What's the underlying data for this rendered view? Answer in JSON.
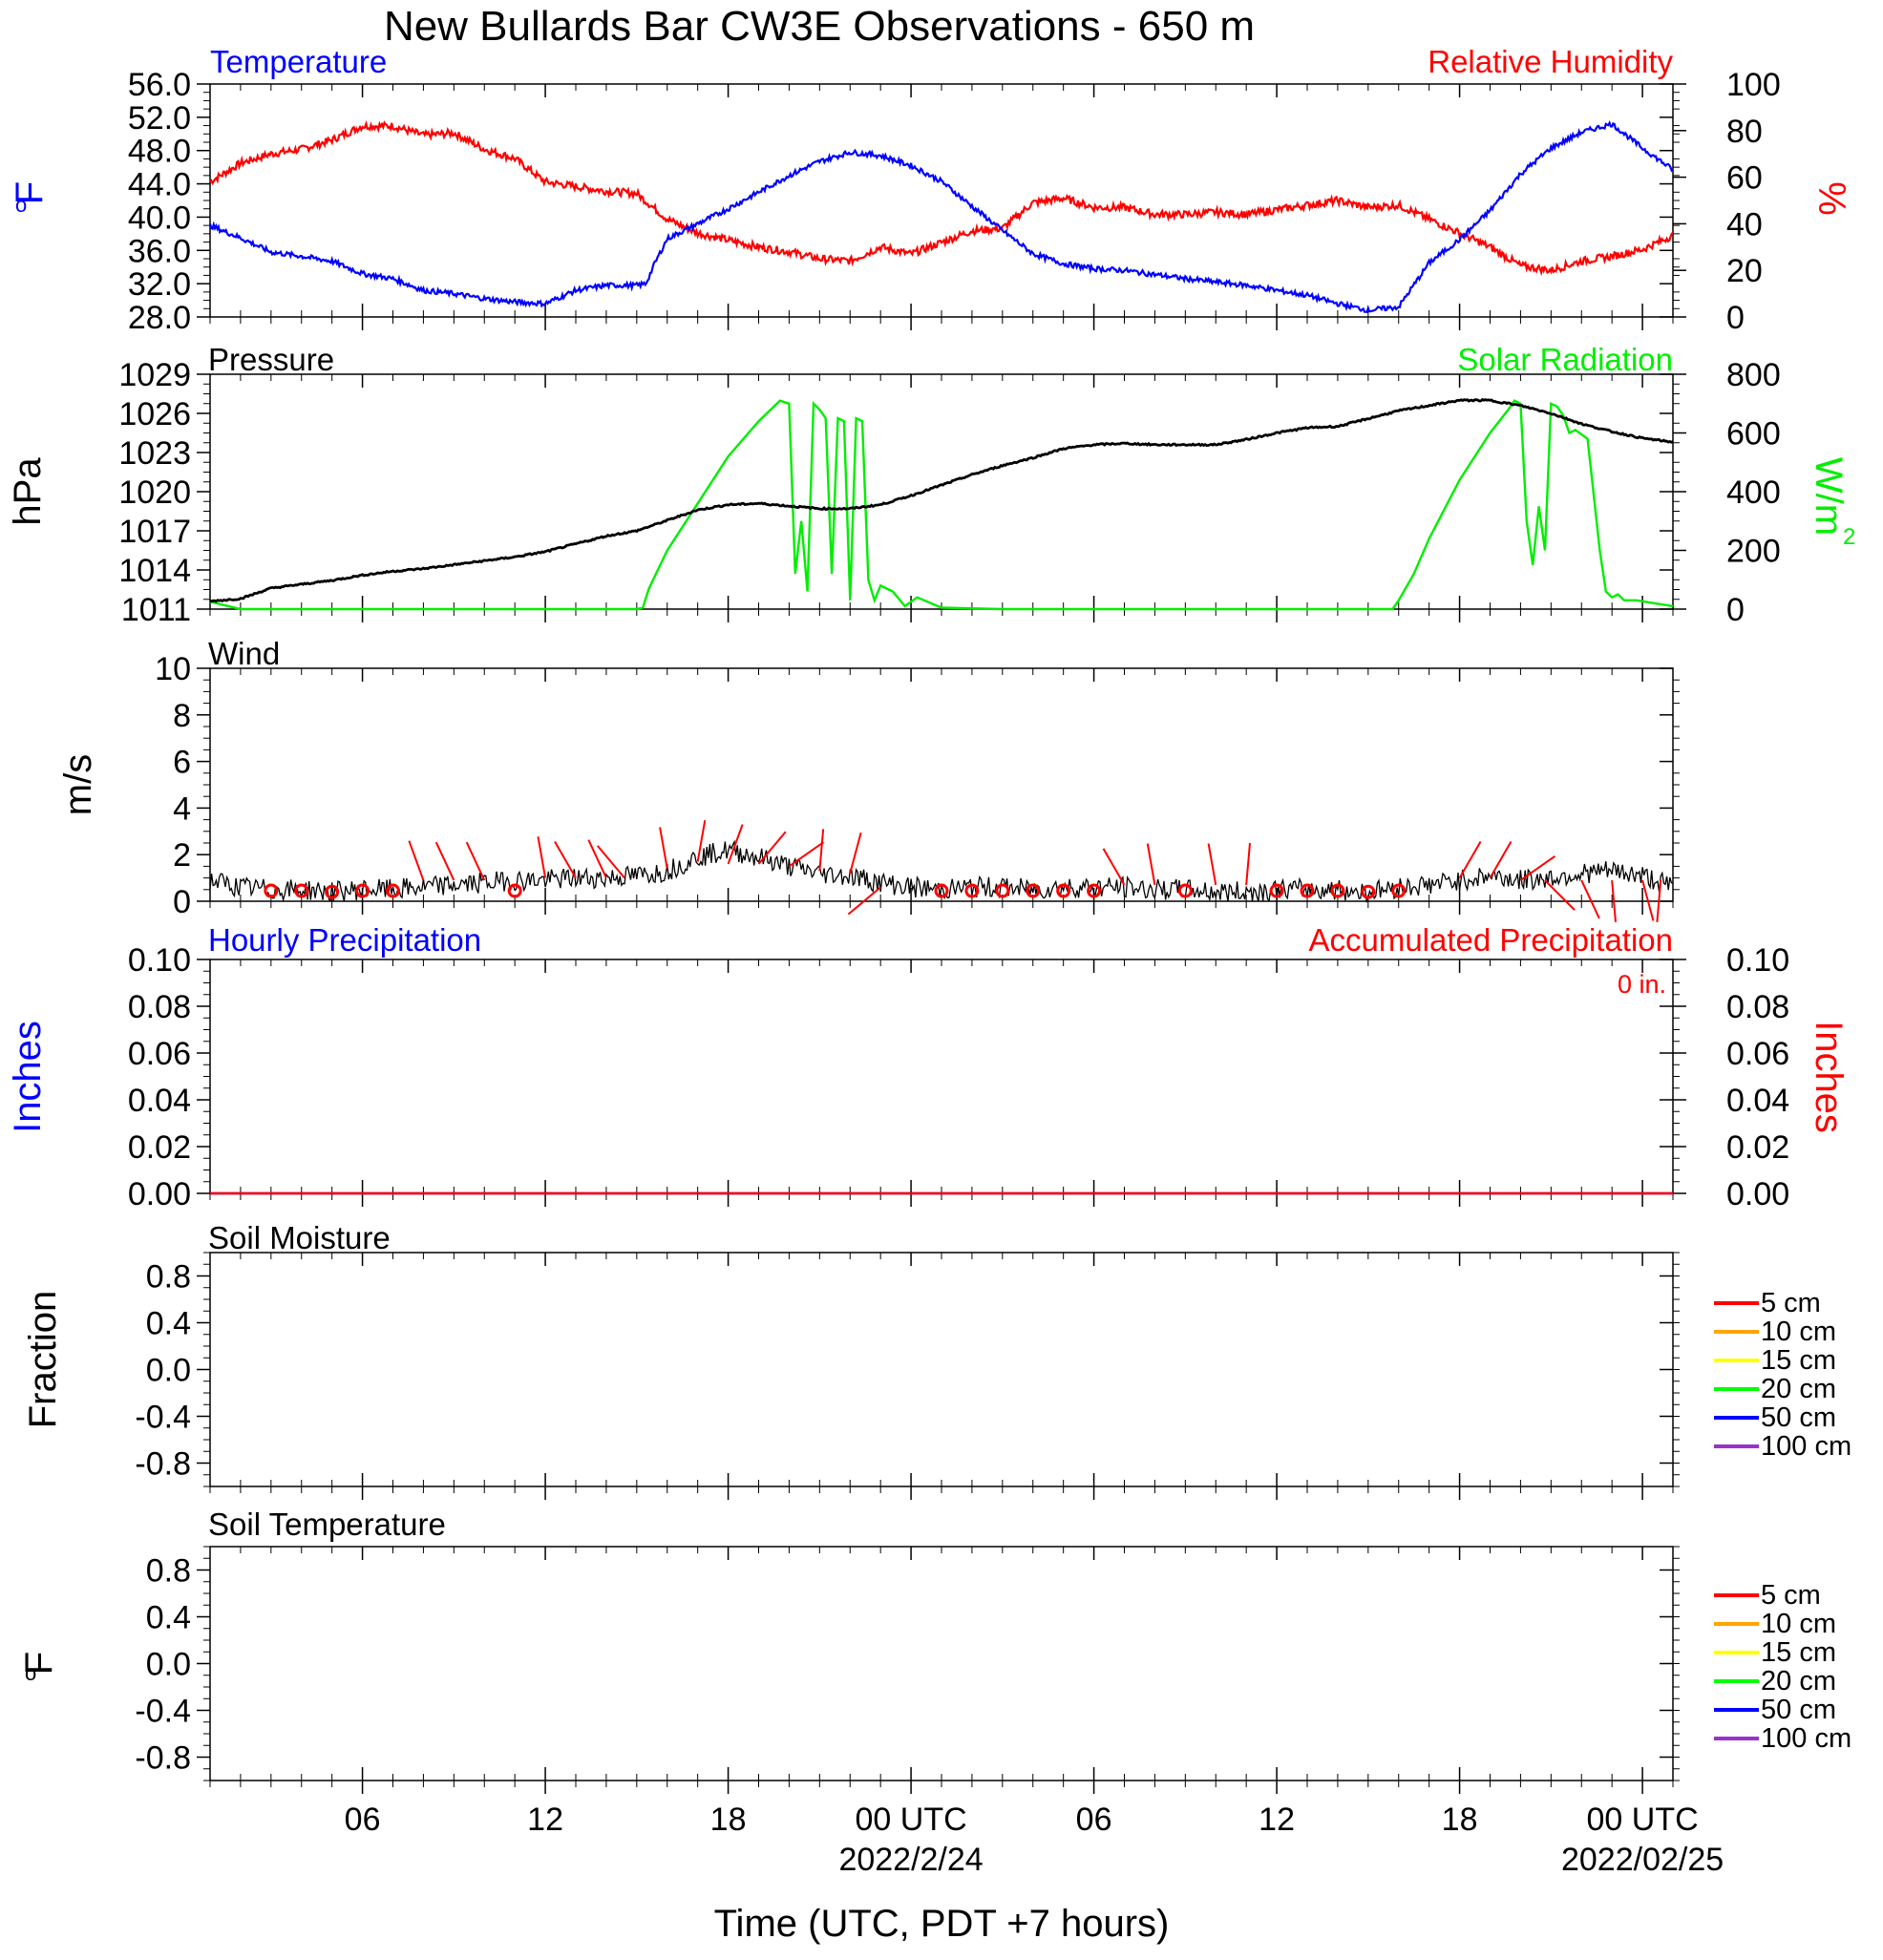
{
  "title": "New Bullards Bar CW3E Observations - 650 m",
  "x_axis": {
    "label": "Time (UTC, PDT +7 hours)",
    "tick_labels": [
      "06",
      "12",
      "18",
      "00 UTC",
      "06",
      "12",
      "18",
      "00 UTC"
    ],
    "date_labels": [
      "2022/2/24",
      "2022/02/25"
    ]
  },
  "colors": {
    "temperature": "#0000ff",
    "humidity": "#ff0000",
    "pressure": "#000000",
    "solar": "#00ee00",
    "wind": "#000000",
    "barbs": "#ff0000",
    "hourly_precip": "#0000ff",
    "accum_precip": "#ff0000"
  },
  "panels": {
    "temp_rh": {
      "left_title": "Temperature",
      "right_title": "Relative Humidity",
      "left_unit_base": "o",
      "left_unit": "F",
      "right_unit": "%",
      "left_ticks": [
        "56.0",
        "52.0",
        "48.0",
        "44.0",
        "40.0",
        "36.0",
        "32.0",
        "28.0"
      ],
      "right_ticks": [
        "100",
        "80",
        "60",
        "40",
        "20",
        "0"
      ]
    },
    "pressure_solar": {
      "left_title": "Pressure",
      "right_title": "Solar Radiation",
      "left_unit": "hPa",
      "right_unit": "W/m",
      "right_unit_sup": "2",
      "left_ticks": [
        "1029",
        "1026",
        "1023",
        "1020",
        "1017",
        "1014",
        "1011"
      ],
      "right_ticks": [
        "800",
        "600",
        "400",
        "200",
        "0"
      ]
    },
    "wind": {
      "left_title": "Wind",
      "left_unit": "m/s",
      "left_ticks": [
        "10",
        "8",
        "6",
        "4",
        "2",
        "0"
      ]
    },
    "precip": {
      "left_title": "Hourly Precipitation",
      "right_title": "Accumulated Precipitation",
      "accum_label": "0 in.",
      "left_unit": "Inches",
      "right_unit": "Inches",
      "left_ticks": [
        "0.10",
        "0.08",
        "0.06",
        "0.04",
        "0.02",
        "0.00"
      ],
      "right_ticks": [
        "0.10",
        "0.08",
        "0.06",
        "0.04",
        "0.02",
        "0.00"
      ]
    },
    "soil_moisture": {
      "left_title": "Soil Moisture",
      "left_unit": "Fraction",
      "left_ticks": [
        "0.8",
        "0.4",
        "0.0",
        "-0.4",
        "-0.8"
      ],
      "legend": [
        {
          "label": "5 cm",
          "color": "#ff0000"
        },
        {
          "label": "10 cm",
          "color": "#ffa500"
        },
        {
          "label": "15 cm",
          "color": "#ffff00"
        },
        {
          "label": "20 cm",
          "color": "#00ff00"
        },
        {
          "label": "50 cm",
          "color": "#0000ff"
        },
        {
          "label": "100 cm",
          "color": "#9932cc"
        }
      ]
    },
    "soil_temp": {
      "left_title": "Soil Temperature",
      "left_unit_base": "o",
      "left_unit": "F",
      "left_ticks": [
        "0.8",
        "0.4",
        "0.0",
        "-0.4",
        "-0.8"
      ],
      "legend": [
        {
          "label": "5 cm",
          "color": "#ff0000"
        },
        {
          "label": "10 cm",
          "color": "#ffa500"
        },
        {
          "label": "15 cm",
          "color": "#ffff00"
        },
        {
          "label": "20 cm",
          "color": "#00ff00"
        },
        {
          "label": "50 cm",
          "color": "#0000ff"
        },
        {
          "label": "100 cm",
          "color": "#9932cc"
        }
      ]
    }
  },
  "chart_data": [
    {
      "type": "line",
      "panel": "temp_rh",
      "x_unit": "hours since 2022-02-23 00 UTC",
      "xlim": [
        1,
        49
      ],
      "ylim": [
        28,
        56
      ],
      "y2lim": [
        0,
        100
      ],
      "series": [
        {
          "name": "Temperature",
          "axis": "left",
          "x": [
            1,
            2,
            3,
            4,
            5,
            6,
            7,
            8,
            9,
            10,
            11,
            12,
            13,
            14,
            15,
            15.3,
            15.6,
            16,
            17,
            18,
            19,
            20,
            21,
            22,
            23,
            24,
            25,
            26,
            27,
            28,
            29,
            30,
            31,
            32,
            33,
            34,
            35,
            36,
            37,
            38,
            39,
            40,
            41,
            42,
            43,
            44,
            45,
            46,
            47,
            48,
            49
          ],
          "y": [
            39.0,
            37.5,
            35.8,
            35.3,
            34.7,
            33.2,
            32.6,
            31.2,
            30.8,
            30.2,
            29.8,
            29.6,
            31.2,
            31.8,
            31.8,
            32.0,
            34.5,
            37.4,
            39.2,
            41.0,
            43.0,
            45.0,
            46.7,
            47.8,
            47.4,
            46.2,
            44.3,
            41.3,
            38.4,
            35.6,
            34.4,
            33.8,
            33.6,
            33.1,
            32.6,
            32.2,
            31.8,
            31.2,
            30.6,
            29.6,
            28.8,
            29.2,
            34.5,
            37.3,
            40.8,
            45.2,
            48.3,
            50.2,
            51.2,
            48.3,
            45.7
          ]
        },
        {
          "name": "Relative Humidity",
          "axis": "right",
          "x": [
            1,
            2,
            3,
            4,
            5,
            6,
            7,
            8,
            9,
            10,
            11,
            12,
            13,
            14,
            15,
            16,
            17,
            18,
            19,
            20,
            21,
            22,
            23,
            24,
            25,
            26,
            27,
            28,
            29,
            30,
            31,
            32,
            33,
            34,
            35,
            36,
            37,
            38,
            39,
            40,
            41,
            42,
            43,
            44,
            45,
            46,
            47,
            48,
            49
          ],
          "y": [
            58,
            66,
            70,
            72,
            76,
            82,
            82,
            78,
            79,
            72,
            68,
            58,
            56,
            54,
            53,
            42,
            36,
            33,
            30,
            28,
            25,
            24,
            30,
            27,
            32,
            37,
            38,
            49,
            51,
            47,
            47,
            44,
            44,
            45,
            44,
            46,
            48,
            50,
            47,
            48,
            42,
            36,
            30,
            22,
            20,
            24,
            26,
            29,
            35
          ]
        }
      ]
    },
    {
      "type": "line",
      "panel": "pressure_solar",
      "x_unit": "hours since 2022-02-23 00 UTC",
      "xlim": [
        1,
        49
      ],
      "ylim": [
        1011,
        1029
      ],
      "y2lim": [
        0,
        800
      ],
      "series": [
        {
          "name": "Pressure",
          "axis": "left",
          "x": [
            1,
            2,
            3,
            4,
            5,
            6,
            7,
            8,
            9,
            10,
            11,
            12,
            13,
            14,
            15,
            16,
            17,
            18,
            19,
            20,
            21,
            22,
            23,
            24,
            25,
            26,
            27,
            28,
            29,
            30,
            31,
            32,
            33,
            34,
            35,
            36,
            37,
            38,
            39,
            40,
            41,
            42,
            43,
            44,
            45,
            46,
            47,
            48,
            49
          ],
          "y": [
            1011.6,
            1011.8,
            1012.6,
            1012.9,
            1013.2,
            1013.6,
            1013.9,
            1014.1,
            1014.4,
            1014.7,
            1015.0,
            1015.4,
            1016.0,
            1016.6,
            1017.0,
            1017.8,
            1018.6,
            1019.0,
            1019.1,
            1018.9,
            1018.7,
            1018.7,
            1019.0,
            1019.7,
            1020.5,
            1021.3,
            1022.0,
            1022.6,
            1023.3,
            1023.6,
            1023.7,
            1023.6,
            1023.6,
            1023.6,
            1024.0,
            1024.5,
            1024.9,
            1025.0,
            1025.6,
            1026.2,
            1026.6,
            1027.0,
            1027.0,
            1026.6,
            1026.0,
            1025.2,
            1024.6,
            1024.1,
            1023.8
          ]
        },
        {
          "name": "Solar Radiation",
          "axis": "right",
          "x": [
            1,
            2,
            5,
            10,
            15,
            15.2,
            15.4,
            16,
            17,
            18,
            19,
            19.7,
            20.0,
            20.2,
            20.4,
            20.6,
            20.8,
            21.0,
            21.2,
            21.4,
            21.6,
            21.8,
            22.0,
            22.2,
            22.4,
            22.6,
            22.8,
            23.0,
            23.4,
            23.8,
            24.2,
            25,
            27,
            30,
            35,
            38,
            39.8,
            40.0,
            40.5,
            41,
            42,
            43,
            43.6,
            43.8,
            44.0,
            44.2,
            44.4,
            44.6,
            44.8,
            45.0,
            45.2,
            45.4,
            45.6,
            45.8,
            46.2,
            46.6,
            46.8,
            47.0,
            47.2,
            47.4,
            47.8,
            48.4,
            49
          ],
          "y": [
            25,
            0,
            0,
            0,
            0,
            5,
            70,
            200,
            360,
            520,
            640,
            710,
            700,
            120,
            300,
            60,
            700,
            680,
            650,
            120,
            650,
            640,
            30,
            650,
            640,
            100,
            30,
            80,
            60,
            10,
            40,
            5,
            0,
            0,
            0,
            0,
            0,
            30,
            120,
            240,
            440,
            600,
            680,
            710,
            700,
            300,
            150,
            350,
            200,
            700,
            690,
            660,
            600,
            610,
            580,
            200,
            60,
            40,
            50,
            30,
            30,
            20,
            10
          ]
        }
      ]
    },
    {
      "type": "line",
      "panel": "wind",
      "x_unit": "hours since 2022-02-23 00 UTC",
      "xlim": [
        1,
        49
      ],
      "ylim": [
        0,
        10
      ],
      "series": [
        {
          "name": "Wind",
          "x": [
            1,
            2,
            3,
            4,
            5,
            6,
            7,
            8,
            9,
            10,
            11,
            12,
            13,
            14,
            15,
            16,
            17,
            18,
            19,
            20,
            21,
            22,
            23,
            24,
            25,
            26,
            27,
            28,
            29,
            30,
            31,
            32,
            33,
            34,
            35,
            36,
            37,
            38,
            39,
            40,
            41,
            42,
            43,
            44,
            45,
            46,
            47,
            48,
            49
          ],
          "y": [
            0.9,
            0.6,
            0.5,
            0.5,
            0.4,
            0.5,
            0.5,
            0.6,
            0.7,
            0.8,
            0.9,
            0.9,
            1.0,
            1.0,
            1.1,
            1.3,
            1.9,
            2.2,
            1.9,
            1.5,
            1.2,
            1.1,
            0.8,
            0.6,
            0.5,
            0.6,
            0.6,
            0.5,
            0.6,
            0.6,
            0.6,
            0.5,
            0.5,
            0.4,
            0.4,
            0.5,
            0.5,
            0.5,
            0.4,
            0.6,
            0.7,
            0.9,
            1.1,
            0.9,
            1.0,
            1.2,
            1.3,
            1.1,
            0.6
          ]
        }
      ],
      "calm_markers_x": [
        3,
        4,
        5,
        6,
        7,
        11,
        25,
        26,
        27,
        28,
        29,
        30,
        33,
        36,
        37,
        38,
        39,
        40
      ],
      "barbs": [
        {
          "x": 8,
          "y": 0.9,
          "dir": 340
        },
        {
          "x": 9,
          "y": 0.9,
          "dir": 335
        },
        {
          "x": 10,
          "y": 0.9,
          "dir": 335
        },
        {
          "x": 12,
          "y": 1.0,
          "dir": 350
        },
        {
          "x": 13,
          "y": 1.0,
          "dir": 330
        },
        {
          "x": 14,
          "y": 1.0,
          "dir": 335
        },
        {
          "x": 14.6,
          "y": 1.0,
          "dir": 320
        },
        {
          "x": 16,
          "y": 1.4,
          "dir": 350
        },
        {
          "x": 17,
          "y": 1.7,
          "dir": 10
        },
        {
          "x": 18,
          "y": 1.6,
          "dir": 20
        },
        {
          "x": 19,
          "y": 1.6,
          "dir": 40
        },
        {
          "x": 20,
          "y": 1.5,
          "dir": 55
        },
        {
          "x": 21,
          "y": 1.3,
          "dir": 5
        },
        {
          "x": 22,
          "y": 1.2,
          "dir": 15
        },
        {
          "x": 23,
          "y": 0.6,
          "dir": 230
        },
        {
          "x": 31,
          "y": 0.7,
          "dir": 330
        },
        {
          "x": 32,
          "y": 0.7,
          "dir": 350
        },
        {
          "x": 34,
          "y": 0.7,
          "dir": 350
        },
        {
          "x": 35,
          "y": 0.7,
          "dir": 5
        },
        {
          "x": 42,
          "y": 1.0,
          "dir": 30
        },
        {
          "x": 43,
          "y": 1.0,
          "dir": 30
        },
        {
          "x": 44,
          "y": 0.9,
          "dir": 55
        },
        {
          "x": 44.8,
          "y": 0.9,
          "dir": 135
        },
        {
          "x": 46,
          "y": 0.9,
          "dir": 155
        },
        {
          "x": 47,
          "y": 0.9,
          "dir": 175
        },
        {
          "x": 48,
          "y": 0.9,
          "dir": 165
        },
        {
          "x": 48.6,
          "y": 0.9,
          "dir": 185
        }
      ]
    },
    {
      "type": "line",
      "panel": "precip",
      "x_unit": "hours since 2022-02-23 00 UTC",
      "xlim": [
        1,
        49
      ],
      "ylim": [
        0,
        0.1
      ],
      "y2lim": [
        0,
        0.1
      ],
      "series": [
        {
          "name": "Hourly Precipitation",
          "axis": "left",
          "x": [
            1,
            49
          ],
          "y": [
            0,
            0
          ]
        },
        {
          "name": "Accumulated Precipitation",
          "axis": "right",
          "x": [
            1,
            49
          ],
          "y": [
            0,
            0
          ]
        }
      ]
    },
    {
      "type": "line",
      "panel": "soil_moisture",
      "ylim": [
        -1,
        1
      ],
      "series": []
    },
    {
      "type": "line",
      "panel": "soil_temp",
      "ylim": [
        -1,
        1
      ],
      "series": []
    }
  ]
}
